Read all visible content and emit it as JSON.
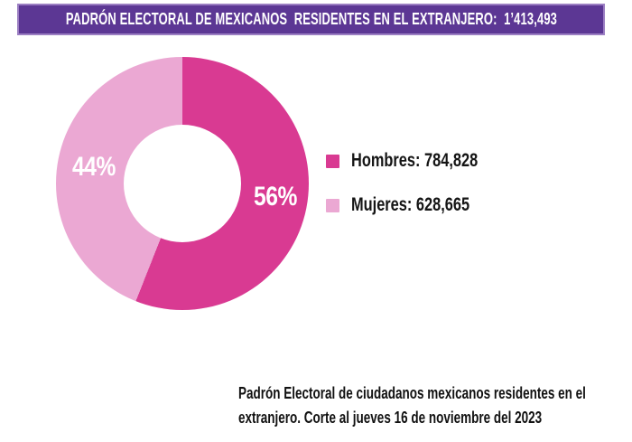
{
  "header": {
    "title": "PADRÓN ELECTORAL DE MEXICANOS  RESIDENTES EN EL EXTRANJERO:  1’413,493",
    "bg_color": "#5C3794",
    "border_color": "#9B7EC2",
    "text_color": "#FFFFFF"
  },
  "chart_data": {
    "type": "pie",
    "style": "donut",
    "start_angle_deg": 0,
    "direction": "clockwise",
    "inner_radius_ratio": 0.465,
    "legend_position": "right",
    "total": 1413493,
    "total_display": "1’413,493",
    "slices": [
      {
        "label": "Hombres",
        "value": 784828,
        "value_display": "784,828",
        "percent": 56,
        "percent_label": "56%",
        "legend_label": "Hombres: 784,828",
        "color": "#D93A92"
      },
      {
        "label": "Mujeres",
        "value": 628665,
        "value_display": "628,665",
        "percent": 44,
        "percent_label": "44%",
        "legend_label": "Mujeres: 628,665",
        "color": "#EBA8D3"
      }
    ]
  },
  "caption": {
    "line1": "Padrón Electoral de ciudadanos mexicanos residentes en el",
    "line2": "extranjero. Corte al jueves 16 de noviembre del 2023"
  }
}
